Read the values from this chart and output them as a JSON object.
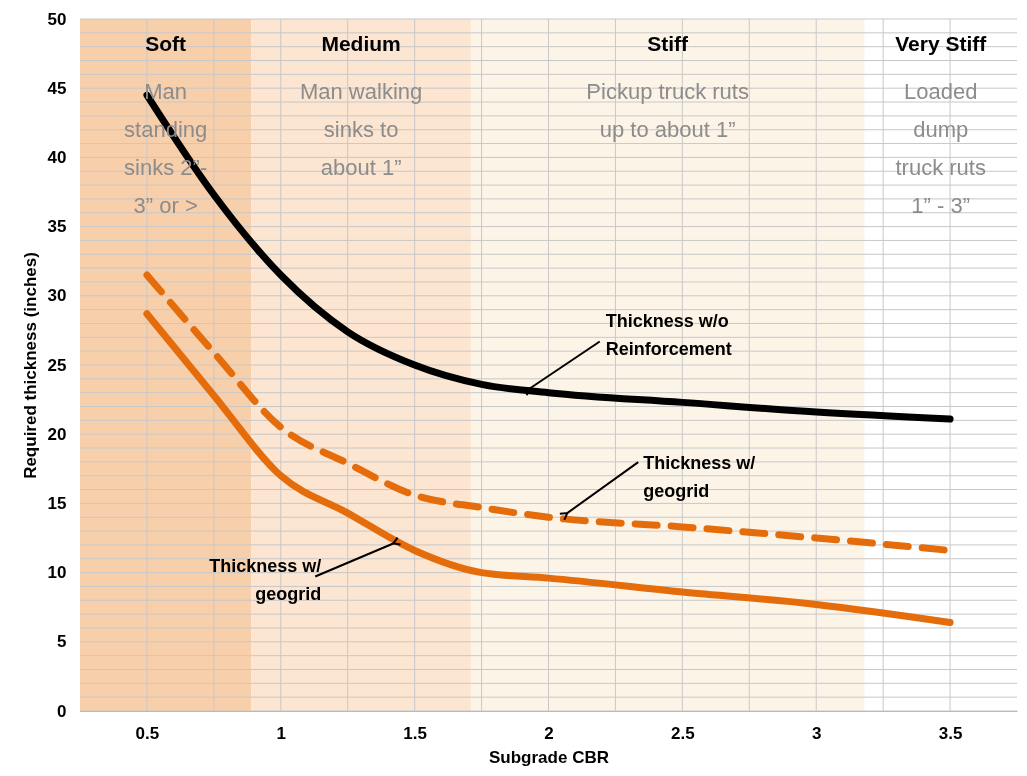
{
  "chart_data": {
    "type": "line",
    "xlabel": "Subgrade CBR",
    "ylabel": "Required thickness (inches)",
    "x": [
      0.5,
      0.75,
      1,
      1.25,
      1.5,
      1.75,
      2,
      2.5,
      3,
      3.5
    ],
    "series": [
      {
        "color": "#000000",
        "line_style": "solid",
        "values": [
          44.5,
          37.3,
          31.5,
          27.4,
          25,
          23.6,
          23,
          22.3,
          21.6,
          21.1
        ]
      },
      {
        "color": "#e46c0a",
        "line_style": "dashed",
        "values": [
          31.5,
          25.9,
          20.5,
          17.9,
          15.6,
          14.7,
          14,
          13.3,
          12.5,
          11.6
        ]
      },
      {
        "color": "#e46c0a",
        "line_style": "solid",
        "values": [
          28.7,
          22.8,
          17,
          14.3,
          11.6,
          10,
          9.6,
          8.6,
          7.7,
          6.4
        ]
      }
    ],
    "xlim": [
      0.25,
      3.75
    ],
    "xticks": [
      0.5,
      {
        "value": 0.75,
        "label": null
      },
      1,
      {
        "value": 1.25,
        "label": null
      },
      1.5,
      {
        "value": 1.75,
        "label": null
      },
      2,
      {
        "value": 2.25,
        "label": null
      },
      2.5,
      {
        "value": 2.75,
        "label": null
      },
      3,
      {
        "value": 3.25,
        "label": null
      },
      3.5
    ],
    "ylim": [
      0,
      50
    ],
    "yticks": [
      0,
      {
        "value": 1,
        "label": null
      },
      {
        "value": 2,
        "label": null
      },
      {
        "value": 3,
        "label": null
      },
      {
        "value": 4,
        "label": null
      },
      5,
      {
        "value": 6,
        "label": null
      },
      {
        "value": 7,
        "label": null
      },
      {
        "value": 8,
        "label": null
      },
      {
        "value": 9,
        "label": null
      },
      10,
      {
        "value": 11,
        "label": null
      },
      {
        "value": 12,
        "label": null
      },
      {
        "value": 13,
        "label": null
      },
      {
        "value": 14,
        "label": null
      },
      15,
      {
        "value": 16,
        "label": null
      },
      {
        "value": 17,
        "label": null
      },
      {
        "value": 18,
        "label": null
      },
      {
        "value": 19,
        "label": null
      },
      20,
      {
        "value": 21,
        "label": null
      },
      {
        "value": 22,
        "label": null
      },
      {
        "value": 23,
        "label": null
      },
      {
        "value": 24,
        "label": null
      },
      25,
      {
        "value": 26,
        "label": null
      },
      {
        "value": 27,
        "label": null
      },
      {
        "value": 28,
        "label": null
      },
      {
        "value": 29,
        "label": null
      },
      30,
      {
        "value": 31,
        "label": null
      },
      {
        "value": 32,
        "label": null
      },
      {
        "value": 33,
        "label": null
      },
      {
        "value": 34,
        "label": null
      },
      35,
      {
        "value": 36,
        "label": null
      },
      {
        "value": 37,
        "label": null
      },
      {
        "value": 38,
        "label": null
      },
      {
        "value": 39,
        "label": null
      },
      40,
      {
        "value": 41,
        "label": null
      },
      {
        "value": 42,
        "label": null
      },
      {
        "value": 43,
        "label": null
      },
      {
        "value": 44,
        "label": null
      },
      45,
      {
        "value": 46,
        "label": null
      },
      {
        "value": 47,
        "label": null
      },
      {
        "value": 48,
        "label": null
      },
      {
        "value": 49,
        "label": null
      },
      50
    ],
    "grid": true,
    "bands": [
      {
        "axis": "x",
        "from": 0.25,
        "to": 0.89,
        "label": "Soft",
        "color": "#f8cfab"
      },
      {
        "axis": "x",
        "from": 0.89,
        "to": 1.71,
        "label": "Medium",
        "color": "#fce5d1"
      },
      {
        "axis": "x",
        "from": 1.71,
        "to": 3.18,
        "label": "Stiff",
        "color": "#fdf4e8"
      }
    ],
    "annotations": [
      "Man\nstanding\nsinks  2”-\n3” or >",
      "Man walking\nsinks to\nabout 1”",
      "Pickup truck ruts\nup to about 1”",
      "Very Stiff",
      "Loaded\ndump\ntruck ruts\n1” - 3”",
      {
        "text": "Thickness w/o\nReinforcement",
        "x": 1.93,
        "y": 23.3
      },
      {
        "text": "Thickness w/\ngeogrid",
        "x": 2.07,
        "y": 14.3
      },
      {
        "text": "Thickness w/\ngeogrid",
        "x": 1.42,
        "y": 12.1
      }
    ]
  }
}
